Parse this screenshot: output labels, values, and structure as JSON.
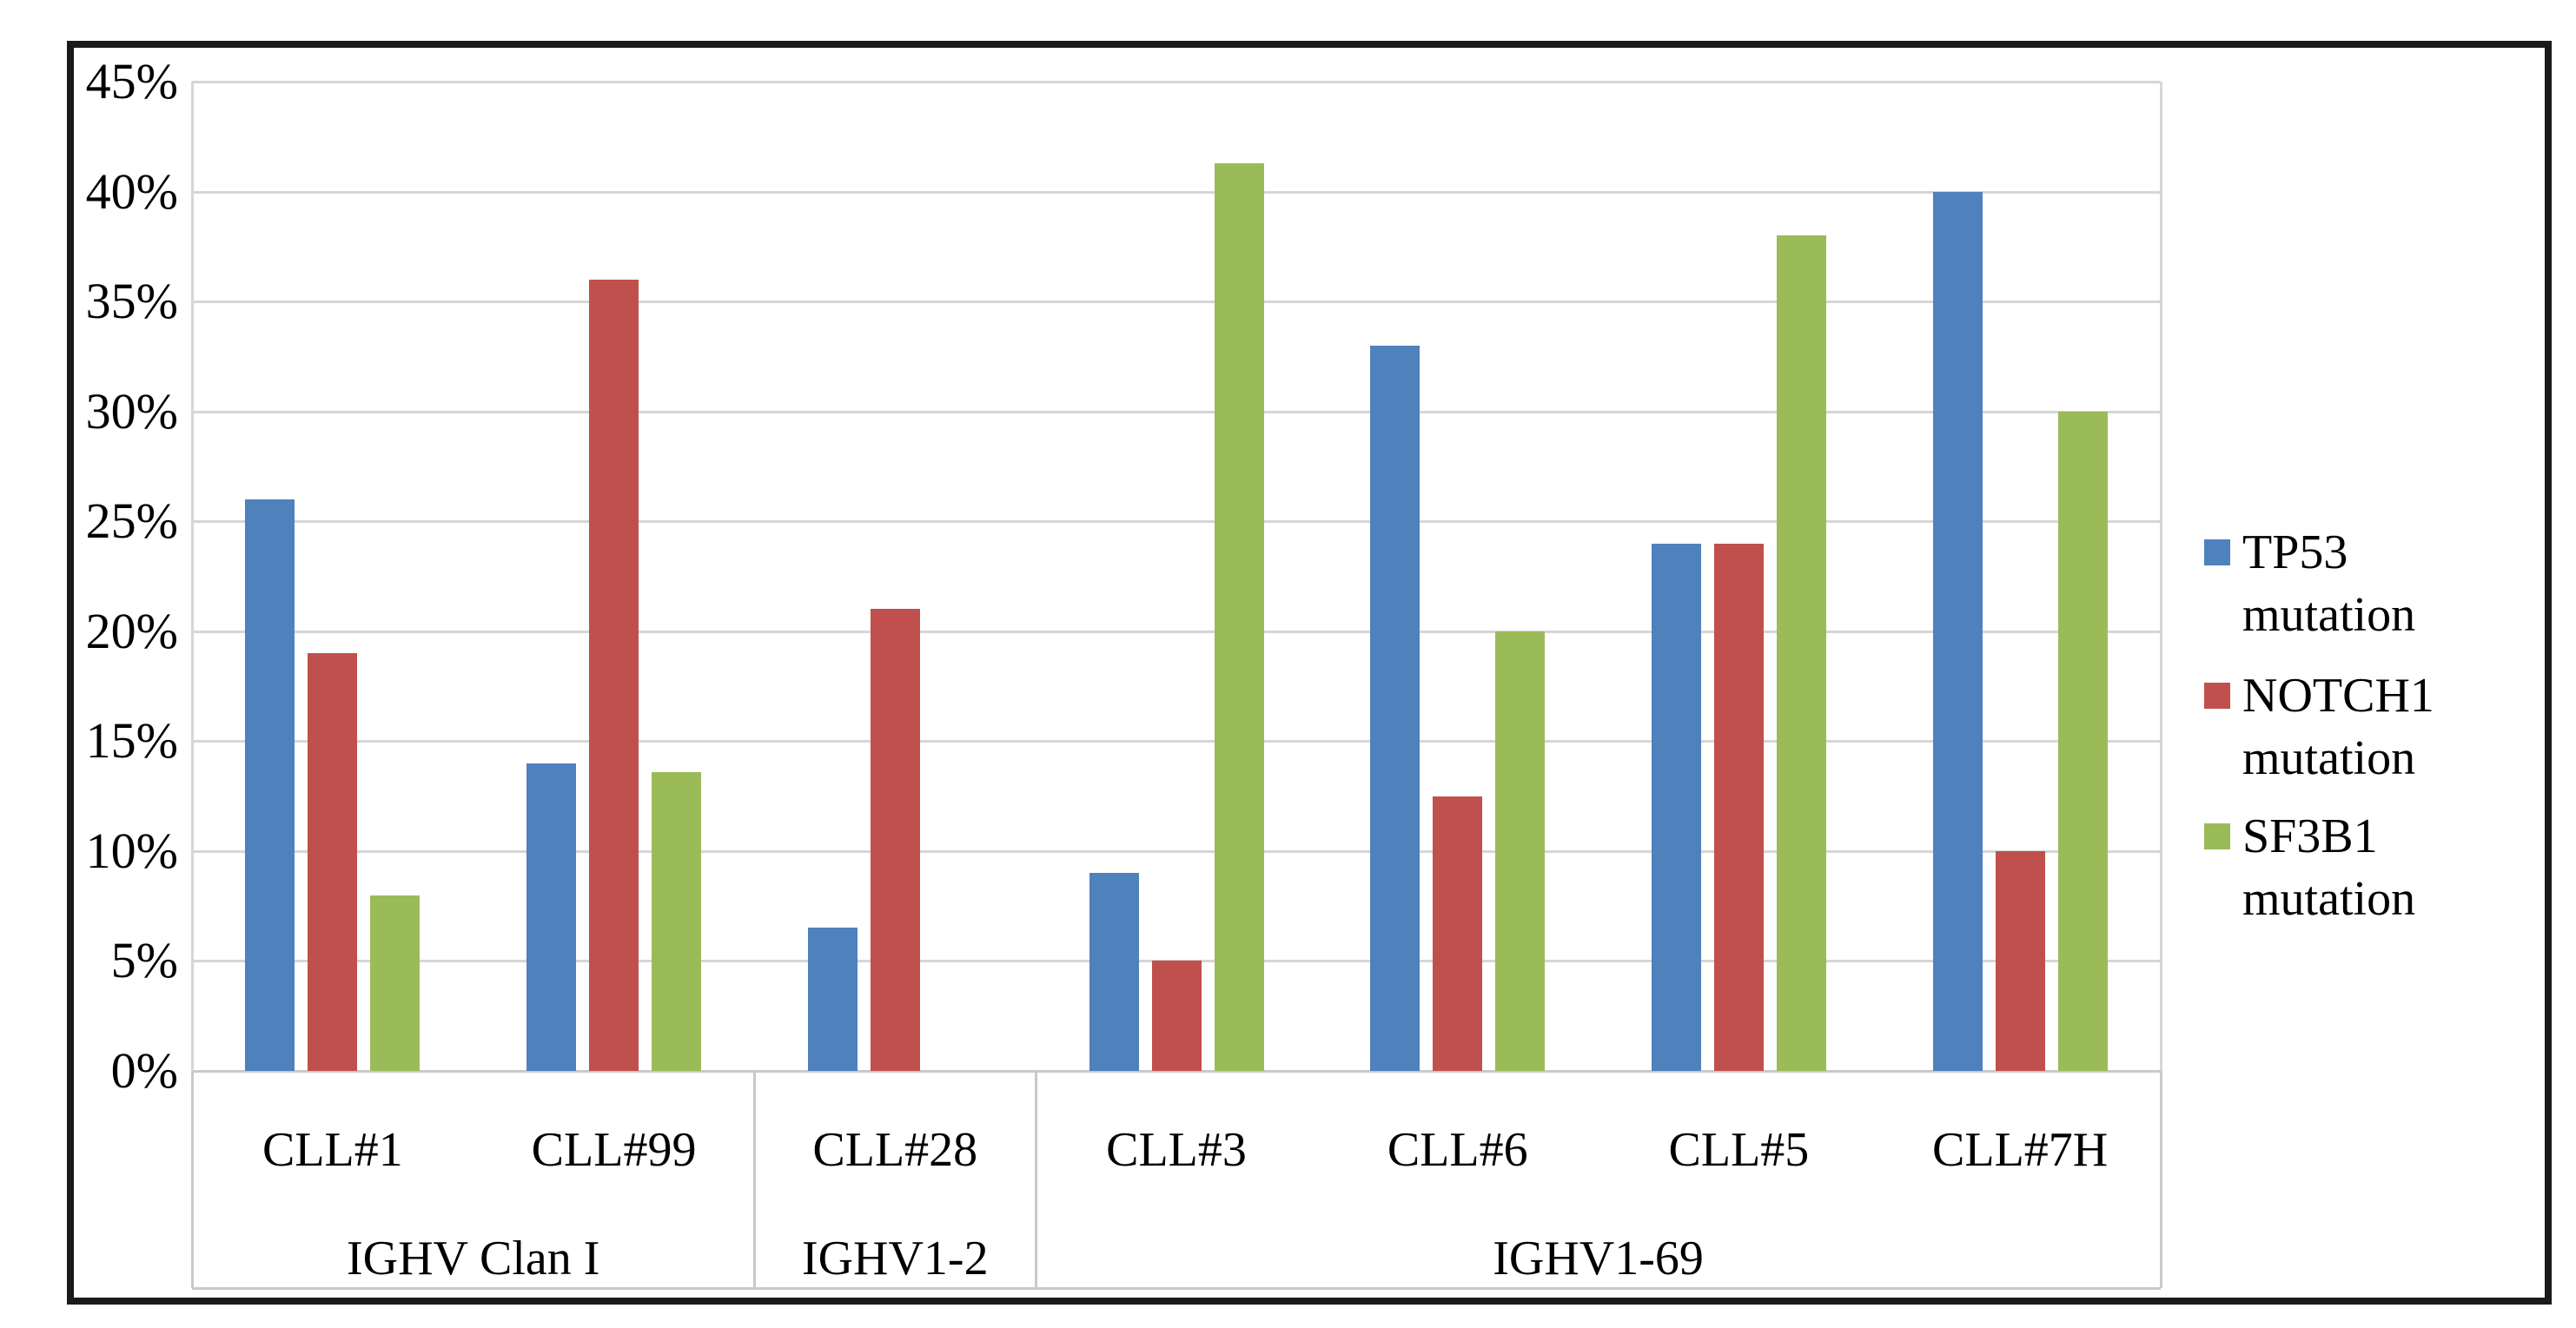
{
  "figure": {
    "background": "#ffffff",
    "border_color": "#1a1a1a"
  },
  "chart_data": {
    "type": "bar",
    "title": "",
    "xlabel": "",
    "ylabel": "",
    "categories": [
      "CLL#1",
      "CLL#99",
      "CLL#28",
      "CLL#3",
      "CLL#6",
      "CLL#5",
      "CLL#7H"
    ],
    "category_groups": [
      {
        "label": "IGHV Clan I",
        "span": 2
      },
      {
        "label": "IGHV1-2",
        "span": 1
      },
      {
        "label": "IGHV1-69",
        "span": 4
      }
    ],
    "series": [
      {
        "name": "TP53 mutation",
        "color": "#4F81BD",
        "values": [
          26,
          14,
          6.5,
          9,
          33,
          24,
          40
        ]
      },
      {
        "name": "NOTCH1 mutation",
        "color": "#C0504D",
        "values": [
          19,
          36,
          21,
          5,
          12.5,
          24,
          10
        ]
      },
      {
        "name": "SF3B1 mutation",
        "color": "#9BBB59",
        "values": [
          8,
          13.6,
          0,
          41.3,
          20,
          38,
          30
        ]
      }
    ],
    "ylim": [
      0,
      45
    ],
    "ytick_step": 5,
    "y_tick_labels": [
      "0%",
      "5%",
      "10%",
      "15%",
      "20%",
      "25%",
      "30%",
      "35%",
      "40%",
      "45%"
    ],
    "grid": true,
    "gridline_color": "#D6D6D6",
    "axis_line_color": "#C9C9C9",
    "legend_position": "right",
    "legend": [
      "TP53 mutation",
      "NOTCH1 mutation",
      "SF3B1 mutation"
    ]
  }
}
